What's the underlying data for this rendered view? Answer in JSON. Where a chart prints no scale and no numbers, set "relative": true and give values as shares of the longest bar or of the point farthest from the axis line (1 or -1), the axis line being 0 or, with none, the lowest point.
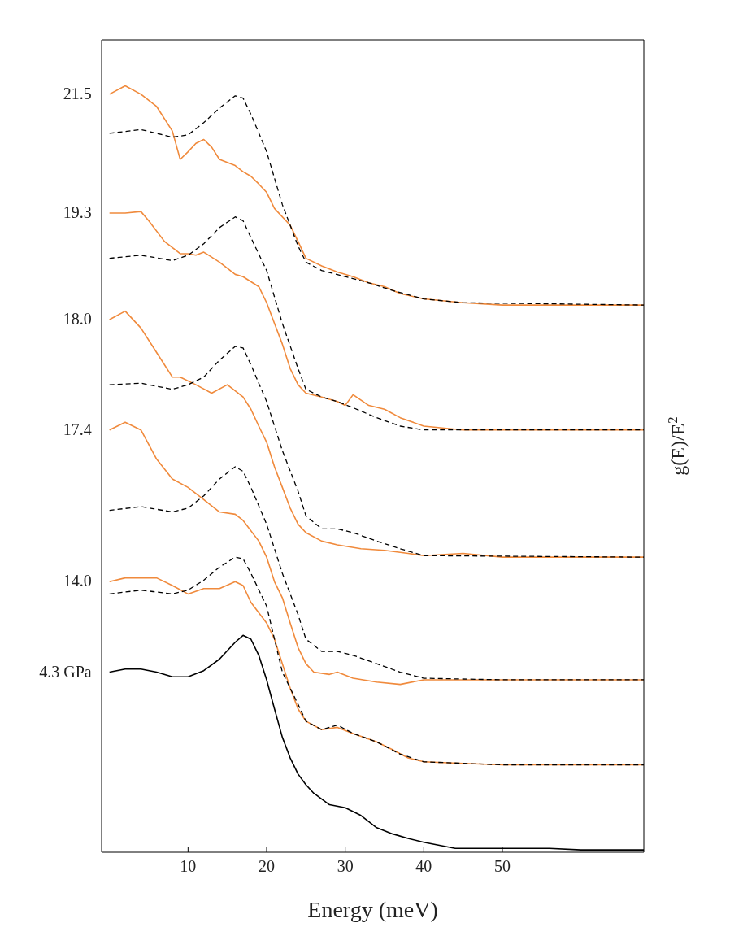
{
  "chart_data": {
    "type": "line",
    "relative": true,
    "xlabel": "Energy (meV)",
    "ylabel": "g(E)/E$^{2}$",
    "xlim": [
      -1,
      68
    ],
    "xticks": [
      10,
      20,
      30,
      40,
      50
    ],
    "marker": "none",
    "grid": false,
    "series": [
      {
        "name": "21.5",
        "color": "#f08a3c",
        "line_style": "solid",
        "x": [
          0,
          2,
          4,
          6,
          8,
          9,
          10,
          11,
          12,
          13,
          14,
          16,
          17,
          18,
          19,
          20,
          21,
          23,
          24,
          25,
          27,
          29,
          31,
          33,
          35,
          37,
          40,
          45,
          50,
          68
        ],
        "values": [
          0.989,
          1,
          0.989,
          0.973,
          0.941,
          0.904,
          0.914,
          0.925,
          0.93,
          0.92,
          0.904,
          0.896,
          0.888,
          0.882,
          0.872,
          0.861,
          0.84,
          0.818,
          0.797,
          0.775,
          0.765,
          0.757,
          0.751,
          0.743,
          0.738,
          0.729,
          0.722,
          0.717,
          0.714,
          0.714
        ]
      },
      {
        "color": "#000000",
        "line_style": "dashed",
        "x": [
          0,
          4,
          8,
          10,
          12,
          14,
          16,
          17,
          18,
          20,
          22,
          24,
          25,
          27,
          30,
          33,
          36,
          40,
          45,
          68
        ],
        "values": [
          0.938,
          0.943,
          0.933,
          0.936,
          0.952,
          0.971,
          0.987,
          0.984,
          0.963,
          0.914,
          0.845,
          0.791,
          0.77,
          0.759,
          0.751,
          0.743,
          0.733,
          0.722,
          0.717,
          0.714
        ]
      },
      {
        "name": "19.3",
        "color": "#f08a3c",
        "line_style": "solid",
        "x": [
          0,
          2,
          4,
          5,
          7,
          9,
          10,
          11,
          12,
          14,
          16,
          17,
          19,
          20,
          21,
          22,
          23,
          24,
          25,
          27,
          29,
          30,
          31,
          33,
          35,
          37,
          40,
          45,
          50,
          68
        ],
        "values": [
          0.834,
          0.834,
          0.836,
          0.824,
          0.797,
          0.781,
          0.781,
          0.779,
          0.783,
          0.77,
          0.754,
          0.751,
          0.738,
          0.717,
          0.69,
          0.663,
          0.631,
          0.61,
          0.599,
          0.594,
          0.588,
          0.583,
          0.597,
          0.583,
          0.578,
          0.567,
          0.556,
          0.551,
          0.551,
          0.551
        ]
      },
      {
        "color": "#000000",
        "line_style": "dashed",
        "x": [
          0,
          4,
          8,
          10,
          12,
          14,
          16,
          17,
          18,
          20,
          22,
          24,
          25,
          27,
          29,
          31,
          34,
          37,
          40,
          68
        ],
        "values": [
          0.775,
          0.779,
          0.772,
          0.779,
          0.794,
          0.815,
          0.829,
          0.824,
          0.802,
          0.759,
          0.69,
          0.631,
          0.604,
          0.594,
          0.588,
          0.58,
          0.567,
          0.556,
          0.551,
          0.551
        ]
      },
      {
        "name": "18.0",
        "color": "#f08a3c",
        "line_style": "solid",
        "x": [
          0,
          2,
          4,
          6,
          8,
          9,
          11,
          13,
          15,
          17,
          18,
          19,
          20,
          21,
          22,
          23,
          24,
          25,
          27,
          29,
          32,
          35,
          38,
          40,
          45,
          50,
          68
        ],
        "values": [
          0.695,
          0.706,
          0.684,
          0.652,
          0.62,
          0.62,
          0.61,
          0.599,
          0.61,
          0.594,
          0.578,
          0.556,
          0.535,
          0.503,
          0.476,
          0.449,
          0.428,
          0.417,
          0.406,
          0.401,
          0.396,
          0.394,
          0.39,
          0.387,
          0.39,
          0.385,
          0.385
        ]
      },
      {
        "color": "#000000",
        "line_style": "dashed",
        "x": [
          0,
          4,
          8,
          10,
          12,
          14,
          16,
          17,
          18,
          20,
          22,
          24,
          25,
          27,
          29,
          31,
          34,
          37,
          40,
          68
        ],
        "values": [
          0.61,
          0.612,
          0.604,
          0.61,
          0.62,
          0.642,
          0.66,
          0.658,
          0.636,
          0.588,
          0.524,
          0.471,
          0.439,
          0.422,
          0.422,
          0.417,
          0.406,
          0.396,
          0.387,
          0.385
        ]
      },
      {
        "name": "17.4",
        "color": "#f08a3c",
        "line_style": "solid",
        "x": [
          0,
          2,
          4,
          6,
          8,
          10,
          12,
          14,
          16,
          17,
          19,
          20,
          21,
          22,
          23,
          24,
          25,
          26,
          28,
          29,
          31,
          34,
          37,
          40,
          50,
          68
        ],
        "values": [
          0.551,
          0.561,
          0.551,
          0.513,
          0.487,
          0.476,
          0.46,
          0.444,
          0.441,
          0.433,
          0.406,
          0.385,
          0.353,
          0.332,
          0.299,
          0.267,
          0.246,
          0.235,
          0.232,
          0.235,
          0.227,
          0.222,
          0.219,
          0.225,
          0.225,
          0.225
        ]
      },
      {
        "color": "#000000",
        "line_style": "dashed",
        "x": [
          0,
          4,
          8,
          10,
          12,
          14,
          16,
          17,
          18,
          20,
          22,
          24,
          25,
          27,
          29,
          31,
          34,
          37,
          40,
          50,
          68
        ],
        "values": [
          0.446,
          0.451,
          0.444,
          0.449,
          0.465,
          0.487,
          0.503,
          0.497,
          0.476,
          0.428,
          0.364,
          0.31,
          0.278,
          0.262,
          0.262,
          0.257,
          0.246,
          0.235,
          0.227,
          0.225,
          0.225
        ]
      },
      {
        "name": "14.0",
        "color": "#f08a3c",
        "line_style": "solid",
        "x": [
          0,
          2,
          4,
          6,
          8,
          10,
          12,
          14,
          16,
          17,
          18,
          20,
          21,
          22,
          23,
          24,
          25,
          27,
          29,
          31,
          34,
          36,
          38,
          40,
          45,
          50,
          68
        ],
        "values": [
          0.353,
          0.358,
          0.358,
          0.358,
          0.348,
          0.337,
          0.344,
          0.344,
          0.353,
          0.348,
          0.326,
          0.299,
          0.278,
          0.246,
          0.214,
          0.187,
          0.171,
          0.16,
          0.163,
          0.155,
          0.144,
          0.134,
          0.123,
          0.118,
          0.116,
          0.114,
          0.114
        ]
      },
      {
        "color": "#000000",
        "line_style": "dashed",
        "x": [
          0,
          4,
          8,
          10,
          12,
          14,
          16,
          17,
          18,
          20,
          21,
          22,
          24,
          25,
          27,
          29,
          31,
          34,
          37,
          40,
          50,
          68
        ],
        "values": [
          0.337,
          0.342,
          0.337,
          0.342,
          0.355,
          0.372,
          0.385,
          0.383,
          0.364,
          0.321,
          0.278,
          0.235,
          0.193,
          0.171,
          0.16,
          0.166,
          0.155,
          0.144,
          0.128,
          0.118,
          0.114,
          0.114
        ]
      },
      {
        "name": "4.3 GPa",
        "color": "#000000",
        "line_style": "solid",
        "x": [
          0,
          2,
          4,
          6,
          8,
          10,
          12,
          14,
          16,
          17,
          18,
          19,
          20,
          21,
          22,
          23,
          24,
          25,
          26,
          28,
          30,
          32,
          34,
          36,
          38,
          40,
          44,
          50,
          56,
          60,
          68
        ],
        "values": [
          0.235,
          0.239,
          0.239,
          0.235,
          0.229,
          0.229,
          0.237,
          0.252,
          0.274,
          0.283,
          0.278,
          0.257,
          0.225,
          0.187,
          0.15,
          0.123,
          0.102,
          0.088,
          0.077,
          0.062,
          0.058,
          0.048,
          0.032,
          0.024,
          0.018,
          0.013,
          0.005,
          0.005,
          0.005,
          0.003,
          0.003
        ]
      }
    ]
  }
}
